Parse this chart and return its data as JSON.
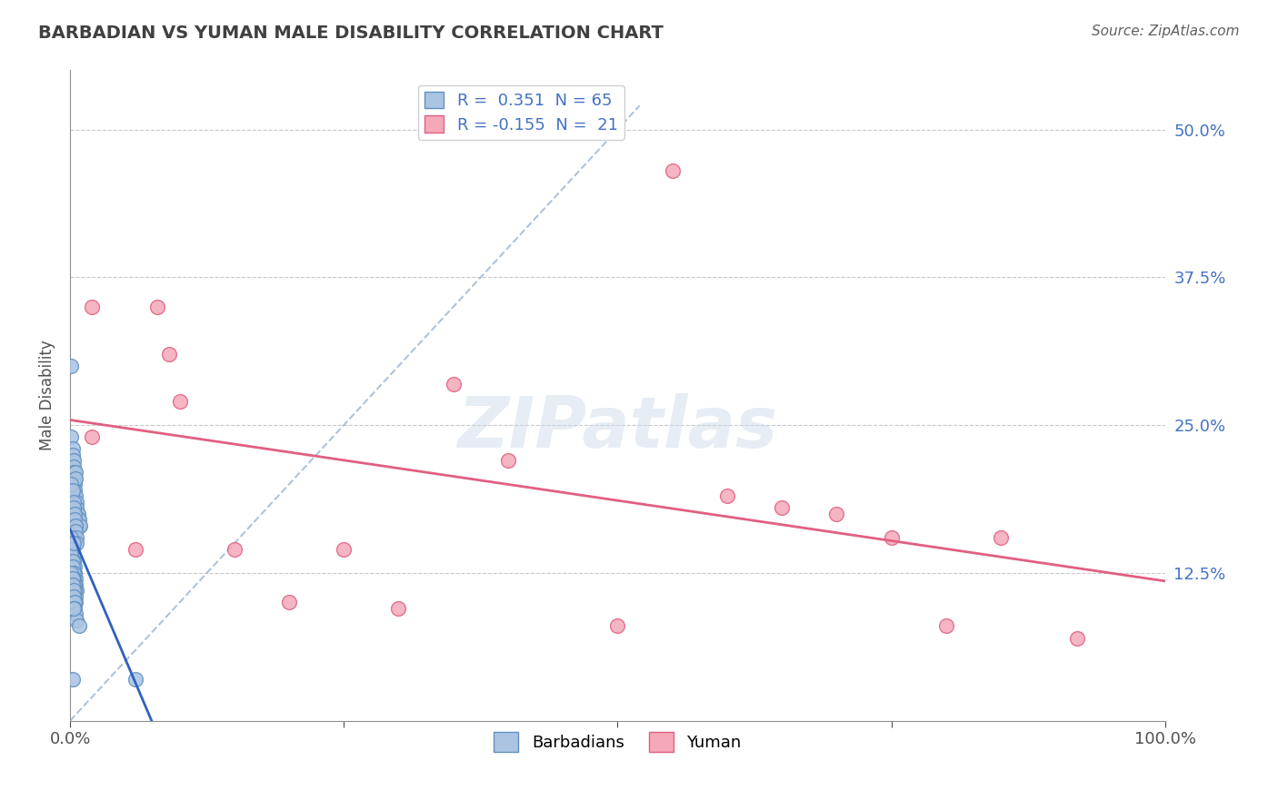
{
  "title": "BARBADIAN VS YUMAN MALE DISABILITY CORRELATION CHART",
  "source": "Source: ZipAtlas.com",
  "ylabel": "Male Disability",
  "xlim": [
    0.0,
    1.0
  ],
  "ylim": [
    0.0,
    0.55
  ],
  "ytick_labels_right": [
    "12.5%",
    "25.0%",
    "37.5%",
    "50.0%"
  ],
  "ytick_vals_right": [
    0.125,
    0.25,
    0.375,
    0.5
  ],
  "R_barbadian": 0.351,
  "N_barbadian": 65,
  "R_yuman": -0.155,
  "N_yuman": 21,
  "barbadian_color": "#aac4e2",
  "yuman_color": "#f4a8b8",
  "barbadian_edge": "#6090c0",
  "yuman_edge": "#e06080",
  "regression_barbadian_color": "#3060c0",
  "regression_yuman_color": "#e06080",
  "watermark": "ZIPatlas",
  "watermark_color": "#c8d8e8",
  "barbadian_x": [
    0.001,
    0.002,
    0.002,
    0.003,
    0.003,
    0.003,
    0.004,
    0.004,
    0.004,
    0.005,
    0.005,
    0.005,
    0.006,
    0.006,
    0.006,
    0.007,
    0.007,
    0.008,
    0.008,
    0.009,
    0.001,
    0.002,
    0.003,
    0.003,
    0.004,
    0.004,
    0.005,
    0.005,
    0.006,
    0.006,
    0.001,
    0.002,
    0.002,
    0.003,
    0.003,
    0.004,
    0.004,
    0.005,
    0.005,
    0.006,
    0.001,
    0.001,
    0.002,
    0.002,
    0.003,
    0.003,
    0.004,
    0.004,
    0.005,
    0.005,
    0.001,
    0.002,
    0.002,
    0.003,
    0.003,
    0.004,
    0.004,
    0.005,
    0.006,
    0.008,
    0.001,
    0.002,
    0.003,
    0.06,
    0.003
  ],
  "barbadian_y": [
    0.24,
    0.23,
    0.225,
    0.22,
    0.215,
    0.21,
    0.205,
    0.2,
    0.195,
    0.21,
    0.205,
    0.19,
    0.185,
    0.18,
    0.175,
    0.175,
    0.17,
    0.165,
    0.17,
    0.165,
    0.2,
    0.195,
    0.185,
    0.18,
    0.175,
    0.17,
    0.165,
    0.16,
    0.155,
    0.15,
    0.155,
    0.15,
    0.145,
    0.14,
    0.135,
    0.13,
    0.125,
    0.12,
    0.115,
    0.11,
    0.145,
    0.14,
    0.135,
    0.13,
    0.125,
    0.12,
    0.115,
    0.11,
    0.105,
    0.1,
    0.125,
    0.12,
    0.115,
    0.11,
    0.105,
    0.1,
    0.095,
    0.09,
    0.085,
    0.08,
    0.3,
    0.035,
    0.095,
    0.035,
    0.15
  ],
  "yuman_x": [
    0.02,
    0.08,
    0.09,
    0.35,
    0.4,
    0.55,
    0.6,
    0.7,
    0.75,
    0.8,
    0.02,
    0.06,
    0.25,
    0.3,
    0.92,
    0.1,
    0.15,
    0.2,
    0.5,
    0.65,
    0.85
  ],
  "yuman_y": [
    0.35,
    0.35,
    0.31,
    0.285,
    0.22,
    0.465,
    0.19,
    0.175,
    0.155,
    0.08,
    0.24,
    0.145,
    0.145,
    0.095,
    0.07,
    0.27,
    0.145,
    0.1,
    0.08,
    0.18,
    0.155
  ]
}
